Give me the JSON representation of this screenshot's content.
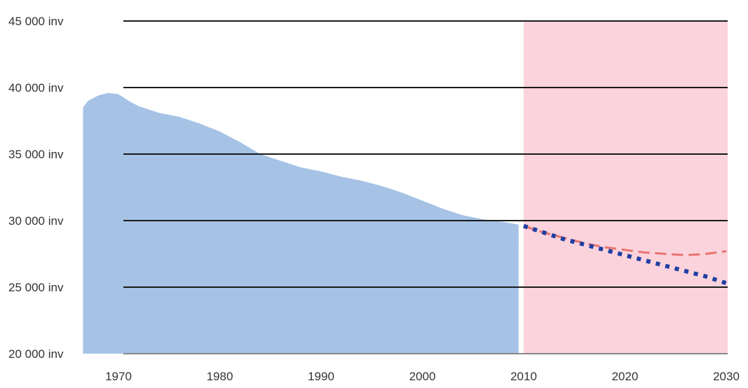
{
  "chart_data": {
    "type": "area",
    "title": "",
    "xlabel": "",
    "ylabel": "",
    "ylim": [
      20000,
      45000
    ],
    "xlim": [
      1966.5,
      2030
    ],
    "grid": true,
    "y_ticks": [
      20000,
      25000,
      30000,
      35000,
      40000,
      45000
    ],
    "y_tick_labels": [
      "20 000 inv",
      "25 000 inv",
      "30 000 inv",
      "35 000 inv",
      "40 000 inv",
      "45 000 inv"
    ],
    "x_ticks": [
      1970,
      1980,
      1990,
      2000,
      2010,
      2020,
      2030
    ],
    "x_tick_labels": [
      "1970",
      "1980",
      "1990",
      "2000",
      "2010",
      "2020",
      "2030"
    ],
    "projection_start": 2010,
    "colors": {
      "historical_fill": "#a6c3e6",
      "projection_fill": "#fbd3dc",
      "gridline": "#1a1a1a",
      "high_projection": "#e8736e",
      "low_projection": "#1f3fa3"
    },
    "series": [
      {
        "type": "area",
        "x": [
          1966.5,
          1967,
          1968,
          1969,
          1970,
          1971,
          1972,
          1974,
          1976,
          1978,
          1980,
          1982,
          1984,
          1986,
          1988,
          1990,
          1992,
          1994,
          1996,
          1998,
          2000,
          2002,
          2004,
          2006,
          2008,
          2009.5
        ],
        "values": [
          38500,
          39000,
          39400,
          39600,
          39500,
          39000,
          38600,
          38100,
          37800,
          37300,
          36700,
          35900,
          35000,
          34500,
          34000,
          33700,
          33300,
          33000,
          32600,
          32100,
          31500,
          30900,
          30400,
          30100,
          29900,
          29700
        ]
      },
      {
        "type": "line",
        "style": "dashed",
        "x": [
          2010,
          2012,
          2014,
          2016,
          2018,
          2020,
          2022,
          2024,
          2026,
          2028,
          2030
        ],
        "values": [
          29600,
          29100,
          28700,
          28300,
          28000,
          27800,
          27600,
          27500,
          27400,
          27500,
          27700
        ]
      },
      {
        "type": "line",
        "style": "dotted",
        "x": [
          2010,
          2012,
          2014,
          2016,
          2018,
          2020,
          2022,
          2024,
          2026,
          2028,
          2030
        ],
        "values": [
          29600,
          29100,
          28600,
          28200,
          27800,
          27400,
          27000,
          26600,
          26200,
          25800,
          25300
        ]
      }
    ]
  }
}
